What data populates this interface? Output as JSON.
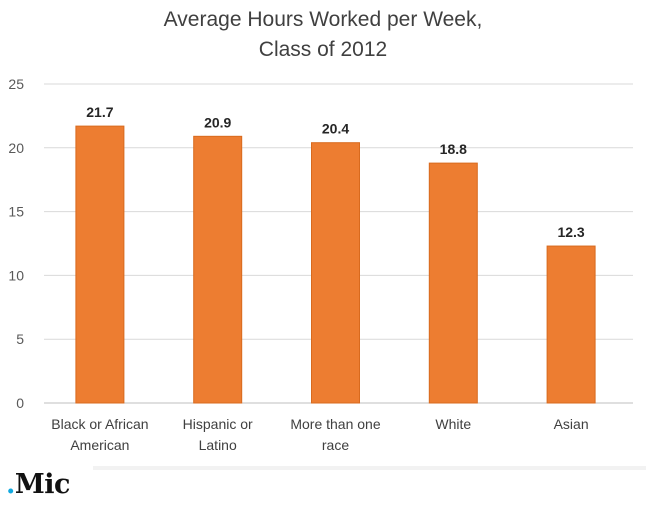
{
  "chart_data": {
    "type": "bar",
    "title": [
      "Average Hours Worked per Week,",
      "Class of 2012"
    ],
    "categories": [
      [
        "Black or African",
        "American"
      ],
      [
        "Hispanic or",
        "Latino"
      ],
      [
        "More than one",
        "race"
      ],
      [
        "White"
      ],
      [
        "Asian"
      ]
    ],
    "values": [
      21.7,
      20.9,
      20.4,
      18.8,
      12.3
    ],
    "value_labels": [
      "21.7",
      "20.9",
      "20.4",
      "18.8",
      "12.3"
    ],
    "yticks": [
      "0",
      "5",
      "10",
      "15",
      "20",
      "25"
    ],
    "ylim": [
      0,
      25
    ],
    "grid": true,
    "legend": "none",
    "colors": {
      "bar": "#ed7d31",
      "bar_edge": "#d86a1e",
      "grid": "#d9d9d9"
    }
  },
  "branding": {
    "logo_dot": ".",
    "logo_text": "Mic"
  }
}
